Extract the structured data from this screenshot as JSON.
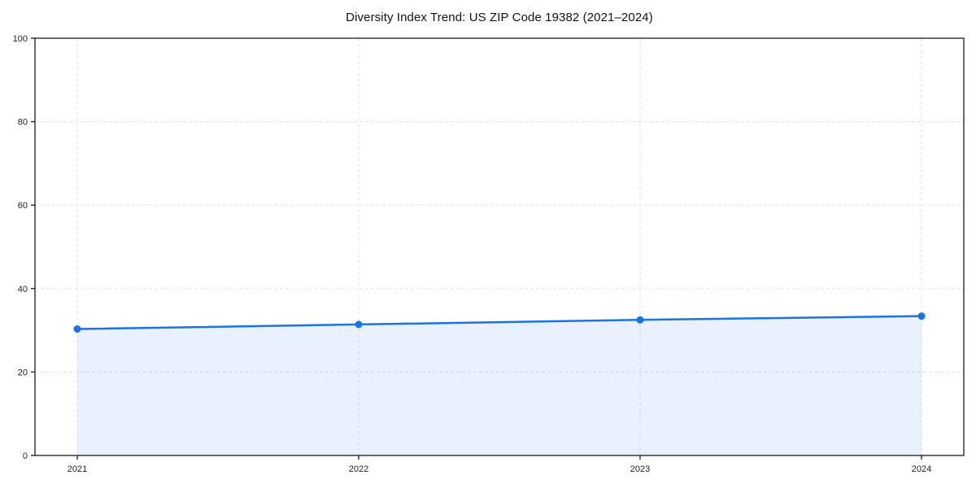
{
  "chart_data": {
    "type": "line",
    "title": "Diversity Index Trend: US ZIP Code 19382 (2021–2024)",
    "categories": [
      "2021",
      "2022",
      "2023",
      "2024"
    ],
    "series": [
      {
        "name": "Diversity Index",
        "values": [
          30.3,
          31.4,
          32.5,
          33.4
        ]
      }
    ],
    "xlabel": "",
    "ylabel": "",
    "ylim": [
      0,
      100
    ],
    "y_ticks": [
      0,
      20,
      40,
      60,
      80,
      100
    ],
    "grid": "dashed-both-axes",
    "legend": "none",
    "area_fill": true,
    "marker": "circle",
    "colors": {
      "line": "#1a73e8",
      "marker": "#1a73e8",
      "area_fill": "rgba(26,115,232,0.10)",
      "grid": "#e3e3e3",
      "axis_border": "#1a1a1a",
      "background": "#ffffff",
      "title_text": "#111111",
      "tick_text": "#222222"
    }
  }
}
